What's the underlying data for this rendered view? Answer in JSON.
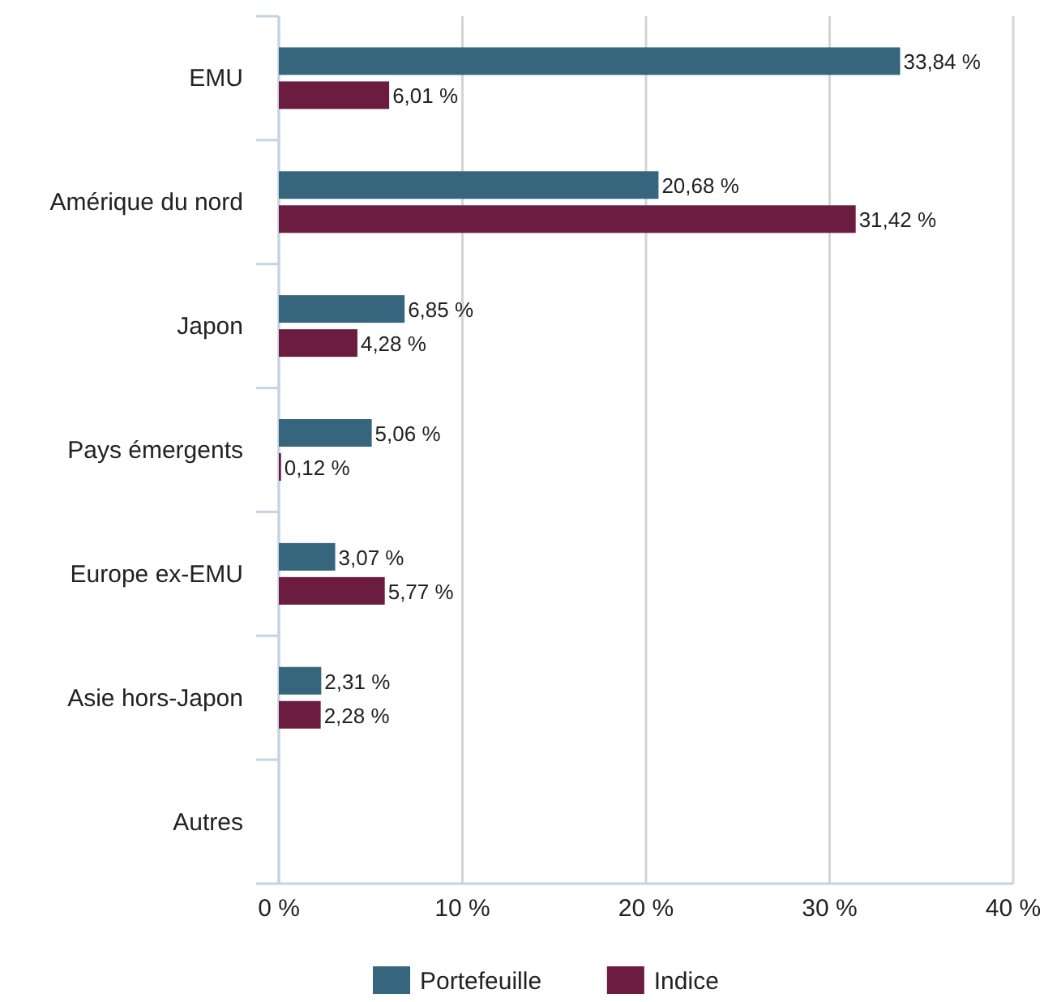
{
  "chart_data": {
    "type": "bar",
    "orientation": "horizontal",
    "categories": [
      "EMU",
      "Amérique du nord",
      "Japon",
      "Pays émergents",
      "Europe ex-EMU",
      "Asie hors-Japon",
      "Autres"
    ],
    "series": [
      {
        "name": "Portefeuille",
        "color": "#36667e",
        "values": [
          33.84,
          20.68,
          6.85,
          5.06,
          3.07,
          2.31,
          null
        ],
        "value_labels": [
          "33,84 %",
          "20,68 %",
          "6,85 %",
          "5,06 %",
          "3,07 %",
          "2,31 %",
          null
        ]
      },
      {
        "name": "Indice",
        "color": "#6b1c40",
        "values": [
          6.01,
          31.42,
          4.28,
          0.12,
          5.77,
          2.28,
          null
        ],
        "value_labels": [
          "6,01 %",
          "31,42 %",
          "4,28 %",
          "0,12 %",
          "5,77 %",
          "2,28 %",
          null
        ]
      }
    ],
    "xlim": [
      0,
      40
    ],
    "xticks": [
      {
        "value": 0,
        "label": "0 %"
      },
      {
        "value": 10,
        "label": "10 %"
      },
      {
        "value": 20,
        "label": "20 %"
      },
      {
        "value": 30,
        "label": "30 %"
      },
      {
        "value": 40,
        "label": "40 %"
      }
    ],
    "grid": "x",
    "legend": "bottom"
  }
}
